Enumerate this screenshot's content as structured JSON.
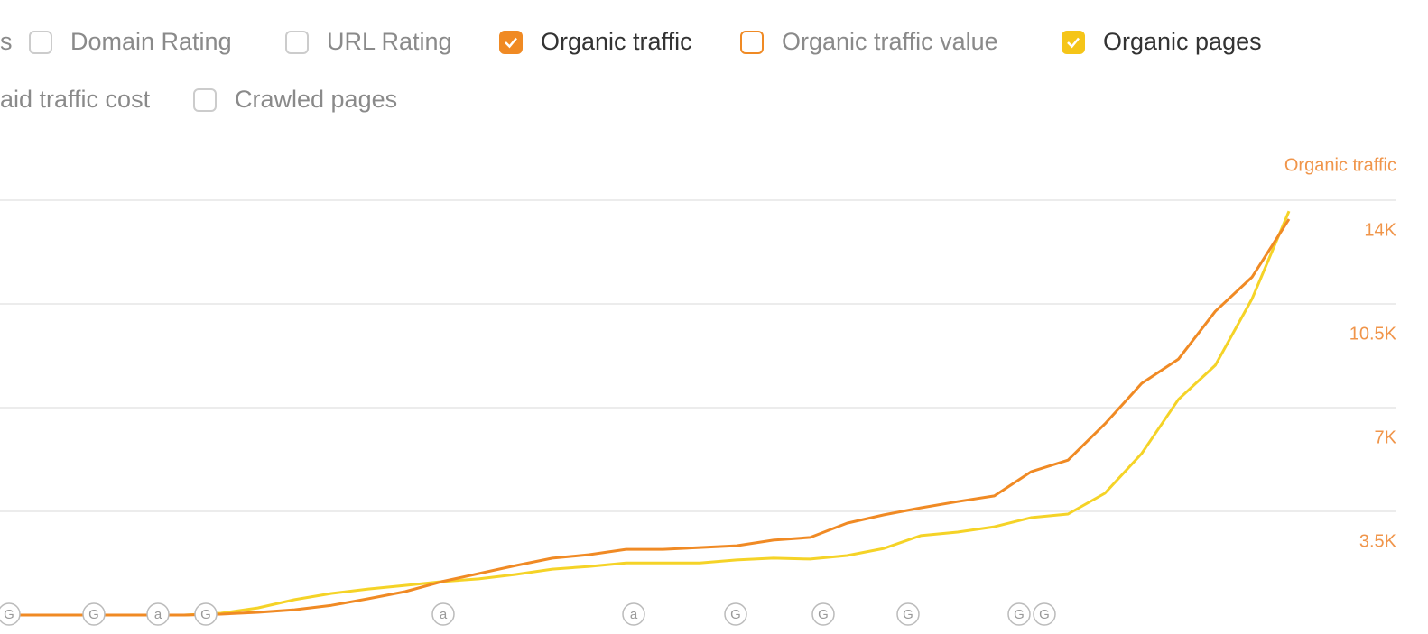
{
  "controls": [
    {
      "label": "s",
      "box": false
    },
    {
      "label": "Domain Rating",
      "box": true,
      "checked": false,
      "color": "#cccccc"
    },
    {
      "label": "URL Rating",
      "box": true,
      "checked": false,
      "color": "#cccccc"
    },
    {
      "label": "Organic traffic",
      "box": true,
      "checked": true,
      "color": "#f08a24"
    },
    {
      "label": "Organic traffic value",
      "box": true,
      "checked": false,
      "color": "#f08a24"
    },
    {
      "label": "Organic pages",
      "box": true,
      "checked": true,
      "color": "#f5c518"
    },
    {
      "label": "aid traffic cost",
      "box": false
    },
    {
      "label": "Crawled pages",
      "box": true,
      "checked": false,
      "color": "#cccccc"
    }
  ],
  "annotations": [
    "G",
    "G",
    "a",
    "G",
    "a",
    "a",
    "G",
    "G",
    "G",
    "G",
    "G"
  ],
  "chart_data": {
    "type": "line",
    "y_axis_label": "Organic traffic",
    "axis_color": "#f0954a",
    "grid": true,
    "ylim": [
      0,
      14000
    ],
    "yticks": [
      {
        "value": 3500,
        "label": "3.5K"
      },
      {
        "value": 7000,
        "label": "7K"
      },
      {
        "value": 10500,
        "label": "10.5K"
      },
      {
        "value": 14000,
        "label": "14K"
      }
    ],
    "series": [
      {
        "name": "Organic traffic",
        "color": "#f08a24",
        "values": [
          0,
          0,
          0,
          0,
          0,
          0,
          30,
          90,
          180,
          330,
          550,
          790,
          1130,
          1400,
          1670,
          1920,
          2040,
          2220,
          2220,
          2280,
          2340,
          2530,
          2620,
          3100,
          3380,
          3620,
          3830,
          4020,
          4840,
          5230,
          6450,
          7820,
          8640,
          10250,
          11410,
          13360
        ]
      },
      {
        "name": "Organic pages",
        "color": "#f5d327",
        "values": [
          0,
          0,
          0,
          0,
          0,
          0,
          60,
          240,
          520,
          730,
          880,
          1000,
          1130,
          1220,
          1370,
          1550,
          1640,
          1760,
          1760,
          1760,
          1860,
          1920,
          1890,
          2010,
          2250,
          2680,
          2800,
          2980,
          3290,
          3410,
          4110,
          5450,
          7280,
          8430,
          10680,
          13630
        ]
      }
    ]
  }
}
